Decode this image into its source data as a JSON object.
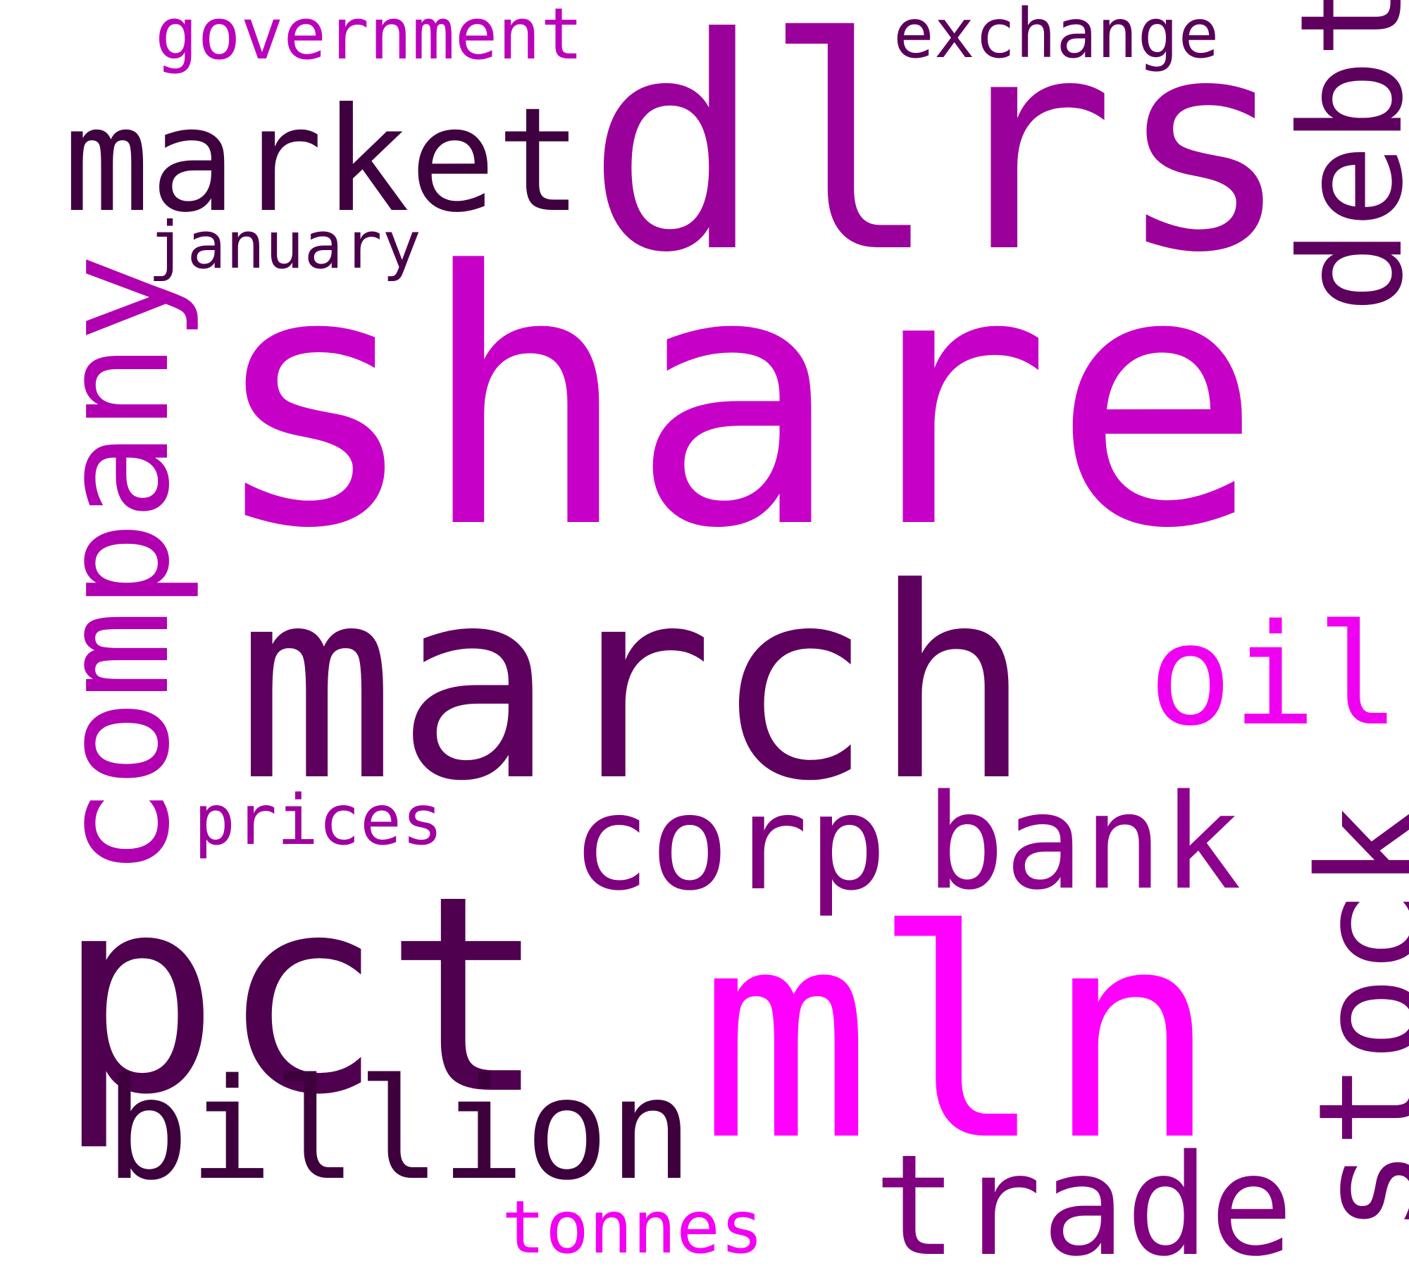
{
  "words": [
    {
      "text": "share",
      "color": "#C700C7"
    },
    {
      "text": "dlrs",
      "color": "#9A009A"
    },
    {
      "text": "march",
      "color": "#5E005E"
    },
    {
      "text": "pct",
      "color": "#4F004F"
    },
    {
      "text": "mln",
      "color": "#FF00FF"
    },
    {
      "text": "market",
      "color": "#3F003F"
    },
    {
      "text": "company",
      "color": "#B000B0"
    },
    {
      "text": "debt",
      "color": "#5E005E"
    },
    {
      "text": "corp",
      "color": "#7F007F"
    },
    {
      "text": "bank",
      "color": "#8E008E"
    },
    {
      "text": "stock",
      "color": "#6F006F"
    },
    {
      "text": "billion",
      "color": "#3D003D"
    },
    {
      "text": "trade",
      "color": "#800080"
    },
    {
      "text": "oil",
      "color": "#F000F0"
    },
    {
      "text": "exchange",
      "color": "#5A005A"
    },
    {
      "text": "government",
      "color": "#BB00BB"
    },
    {
      "text": "january",
      "color": "#4A004A"
    },
    {
      "text": "prices",
      "color": "#A000A0"
    },
    {
      "text": "tonnes",
      "color": "#F200F2"
    }
  ]
}
